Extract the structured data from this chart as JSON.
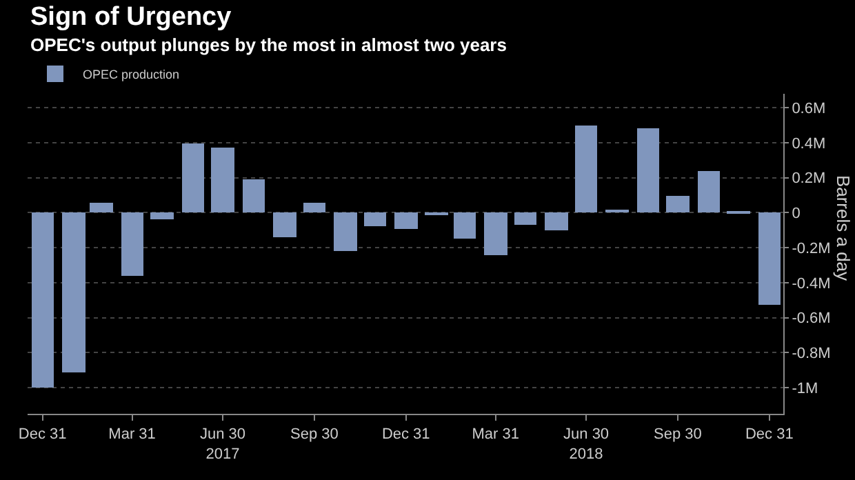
{
  "chart_data": {
    "type": "bar",
    "title": "Sign of Urgency",
    "subtitle": "OPEC's output plunges by the most in almost two years",
    "ylabel": "Barrels a day",
    "x": [
      "2016-12-31",
      "2017-01-31",
      "2017-02-28",
      "2017-03-31",
      "2017-04-30",
      "2017-05-31",
      "2017-06-30",
      "2017-07-31",
      "2017-08-31",
      "2017-09-30",
      "2017-10-31",
      "2017-11-30",
      "2017-12-31",
      "2018-01-31",
      "2018-02-28",
      "2018-03-31",
      "2018-04-30",
      "2018-05-31",
      "2018-06-30",
      "2018-07-31",
      "2018-08-31",
      "2018-09-30",
      "2018-10-31",
      "2018-11-30",
      "2018-12-31"
    ],
    "series": [
      {
        "name": "OPEC production",
        "color": "#8096bd",
        "values": [
          -1.0,
          -0.91,
          0.06,
          -0.36,
          -0.04,
          0.4,
          0.37,
          0.19,
          -0.14,
          0.06,
          -0.22,
          -0.08,
          -0.09,
          -0.01,
          -0.15,
          -0.24,
          -0.07,
          -0.1,
          0.5,
          0.02,
          0.48,
          0.1,
          0.24,
          0.01,
          -0.53
        ]
      }
    ],
    "xlim": [
      "2016-12-16",
      "2019-01-14"
    ],
    "xticks": [
      {
        "value": "2016-12-31",
        "label": "Dec 31"
      },
      {
        "value": "2017-03-31",
        "label": "Mar 31"
      },
      {
        "value": "2017-06-30",
        "label": "Jun 30\n2017"
      },
      {
        "value": "2017-09-30",
        "label": "Sep 30"
      },
      {
        "value": "2017-12-31",
        "label": "Dec 31"
      },
      {
        "value": "2018-03-31",
        "label": "Mar 31"
      },
      {
        "value": "2018-06-30",
        "label": "Jun 30\n2018"
      },
      {
        "value": "2018-09-30",
        "label": "Sep 30"
      },
      {
        "value": "2018-12-31",
        "label": "Dec 31"
      }
    ],
    "ylim": [
      -1.15,
      0.68
    ],
    "yticks": [
      {
        "value": 0.6,
        "label": "0.6M"
      },
      {
        "value": 0.4,
        "label": "0.4M"
      },
      {
        "value": 0.2,
        "label": "0.2M"
      },
      0,
      {
        "value": -0.2,
        "label": "-0.2M"
      },
      {
        "value": -0.4,
        "label": "-0.4M"
      },
      {
        "value": -0.6,
        "label": "-0.6M"
      },
      {
        "value": -0.8,
        "label": "-0.8M"
      },
      {
        "value": -1,
        "label": "-1M"
      }
    ],
    "grid": "y",
    "legend": "top left"
  }
}
